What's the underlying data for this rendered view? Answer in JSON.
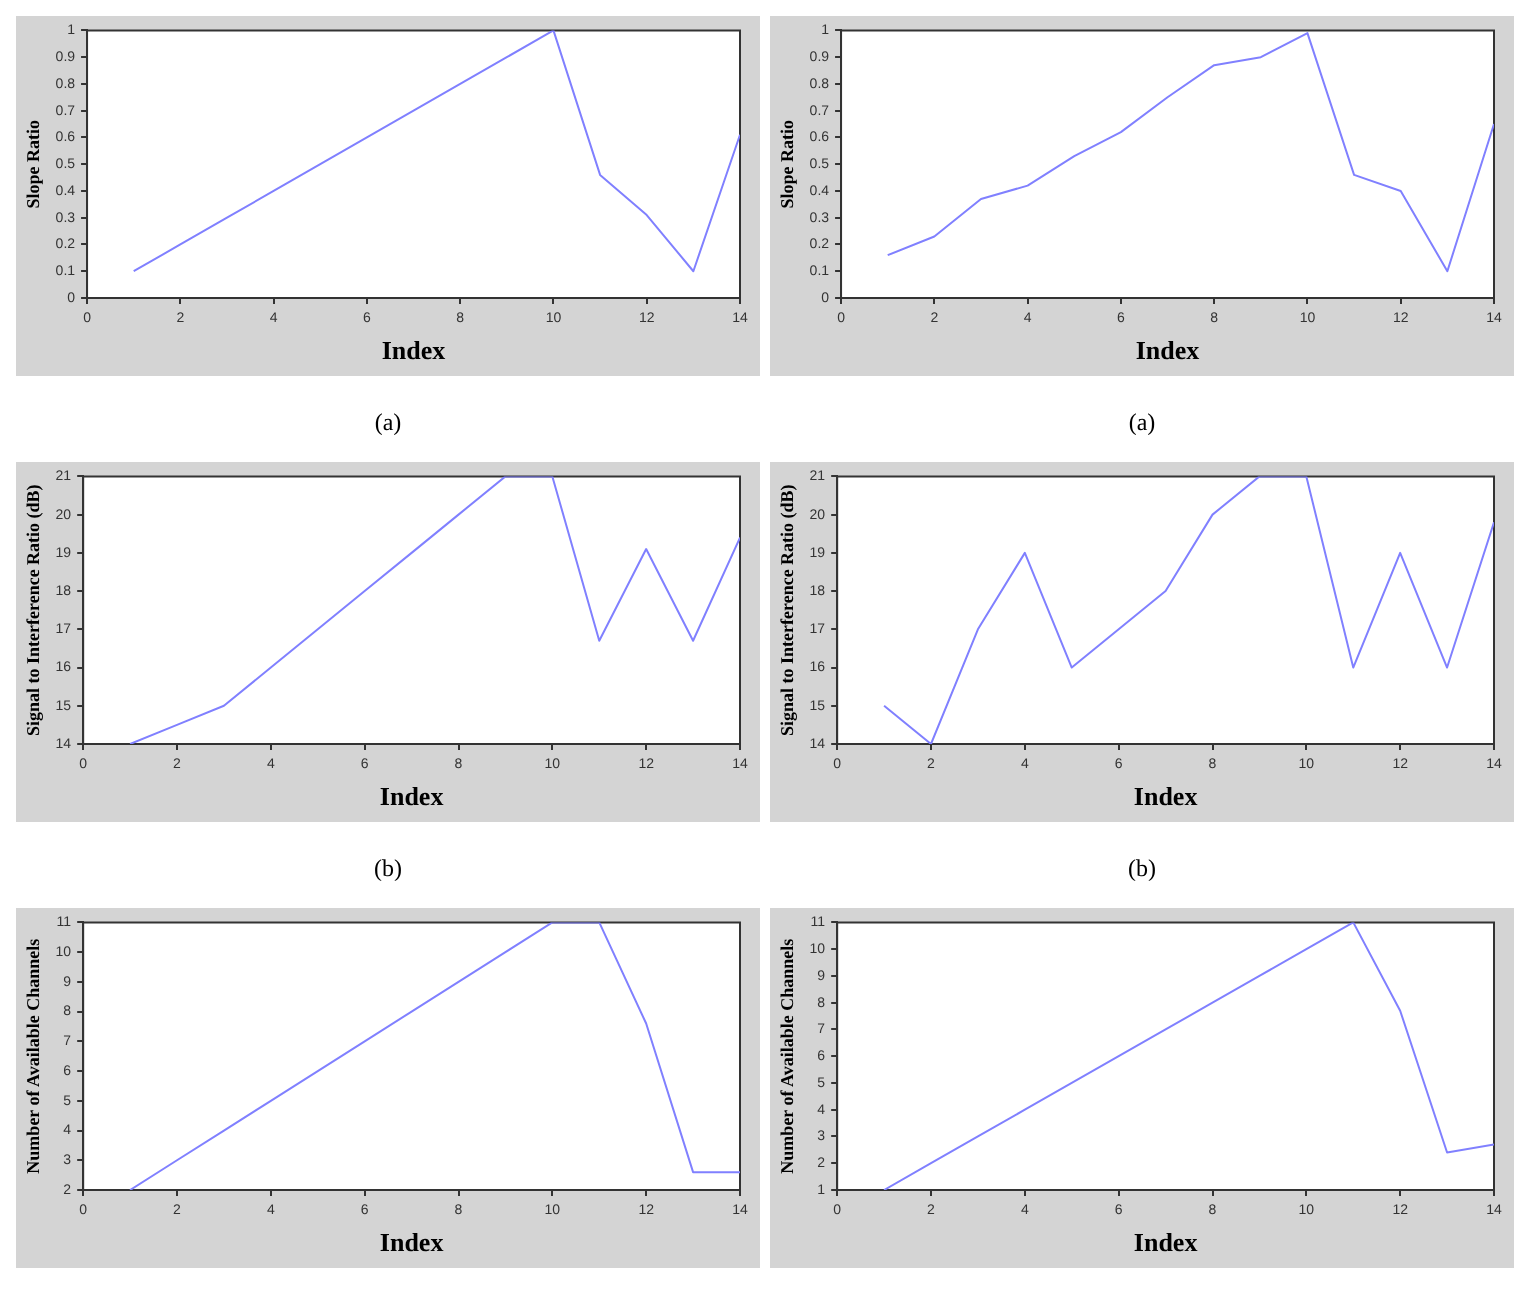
{
  "chart_data": [
    {
      "type": "line",
      "xlabel": "Index",
      "ylabel": "Slope Ratio",
      "x": [
        1,
        2,
        3,
        4,
        5,
        6,
        7,
        8,
        9,
        10,
        11,
        12,
        13,
        14
      ],
      "values": [
        0.1,
        0.2,
        0.3,
        0.4,
        0.5,
        0.6,
        0.7,
        0.8,
        0.9,
        1.0,
        0.46,
        0.31,
        0.1,
        0.61
      ],
      "color": "#8080ff",
      "xlim": [
        0,
        14
      ],
      "xticks": [
        0,
        2,
        4,
        6,
        8,
        10,
        12,
        14
      ],
      "ylim": [
        0,
        1
      ],
      "yticks": [
        0,
        0.1,
        0.2,
        0.3,
        0.4,
        0.5,
        0.6,
        0.7,
        0.8,
        0.9,
        1
      ],
      "annotations": [
        "(a)"
      ]
    },
    {
      "type": "line",
      "xlabel": "Index",
      "ylabel": "Slope Ratio",
      "x": [
        1,
        2,
        3,
        4,
        5,
        6,
        7,
        8,
        9,
        10,
        11,
        12,
        13,
        14
      ],
      "values": [
        0.16,
        0.23,
        0.37,
        0.42,
        0.53,
        0.62,
        0.75,
        0.87,
        0.9,
        0.99,
        0.46,
        0.4,
        0.1,
        0.65
      ],
      "color": "#8080ff",
      "xlim": [
        0,
        14
      ],
      "xticks": [
        0,
        2,
        4,
        6,
        8,
        10,
        12,
        14
      ],
      "ylim": [
        0,
        1
      ],
      "yticks": [
        0,
        0.1,
        0.2,
        0.3,
        0.4,
        0.5,
        0.6,
        0.7,
        0.8,
        0.9,
        1
      ],
      "annotations": [
        "(a)"
      ]
    },
    {
      "type": "line",
      "xlabel": "Index",
      "ylabel": "Signal to Interference Ratio (dB)",
      "x": [
        1,
        2,
        3,
        4,
        5,
        6,
        7,
        8,
        9,
        10,
        11,
        12,
        13,
        14
      ],
      "values": [
        14,
        14.5,
        15,
        16,
        17,
        18,
        19,
        20,
        21,
        21,
        16.7,
        19.1,
        16.7,
        19.4
      ],
      "color": "#8080ff",
      "xlim": [
        0,
        14
      ],
      "xticks": [
        0,
        2,
        4,
        6,
        8,
        10,
        12,
        14
      ],
      "ylim": [
        14,
        21
      ],
      "yticks": [
        14,
        15,
        16,
        17,
        18,
        19,
        20,
        21
      ],
      "annotations": [
        "(b)"
      ]
    },
    {
      "type": "line",
      "xlabel": "Index",
      "ylabel": "Signal to Interference Ratio (dB)",
      "x": [
        1,
        2,
        3,
        4,
        5,
        6,
        7,
        8,
        9,
        10,
        11,
        12,
        13,
        14
      ],
      "values": [
        15,
        14,
        17,
        19,
        16,
        17,
        18,
        20,
        21,
        21,
        16,
        19,
        16,
        19.8
      ],
      "color": "#8080ff",
      "xlim": [
        0,
        14
      ],
      "xticks": [
        0,
        2,
        4,
        6,
        8,
        10,
        12,
        14
      ],
      "ylim": [
        14,
        21
      ],
      "yticks": [
        14,
        15,
        16,
        17,
        18,
        19,
        20,
        21
      ],
      "annotations": [
        "(b)"
      ]
    },
    {
      "type": "line",
      "xlabel": "Index",
      "ylabel": "Number of Available Channels",
      "x": [
        1,
        2,
        3,
        4,
        5,
        6,
        7,
        8,
        9,
        10,
        11,
        12,
        13,
        14
      ],
      "values": [
        2,
        3,
        4,
        5,
        6,
        7,
        8,
        9,
        10,
        11,
        11,
        7.6,
        2.6,
        2.6
      ],
      "color": "#8080ff",
      "xlim": [
        0,
        14
      ],
      "xticks": [
        0,
        2,
        4,
        6,
        8,
        10,
        12,
        14
      ],
      "ylim": [
        2,
        11
      ],
      "yticks": [
        2,
        3,
        4,
        5,
        6,
        7,
        8,
        9,
        10,
        11
      ]
    },
    {
      "type": "line",
      "xlabel": "Index",
      "ylabel": "Number of Available Channels",
      "x": [
        1,
        2,
        3,
        4,
        5,
        6,
        7,
        8,
        9,
        10,
        11,
        12,
        13,
        14
      ],
      "values": [
        1,
        2,
        3,
        4,
        5,
        6,
        7,
        8,
        9,
        10,
        11,
        7.7,
        2.4,
        2.7
      ],
      "color": "#8080ff",
      "xlim": [
        0,
        14
      ],
      "xticks": [
        0,
        2,
        4,
        6,
        8,
        10,
        12,
        14
      ],
      "ylim": [
        1,
        11
      ],
      "yticks": [
        1,
        2,
        3,
        4,
        5,
        6,
        7,
        8,
        9,
        10,
        11
      ]
    }
  ]
}
